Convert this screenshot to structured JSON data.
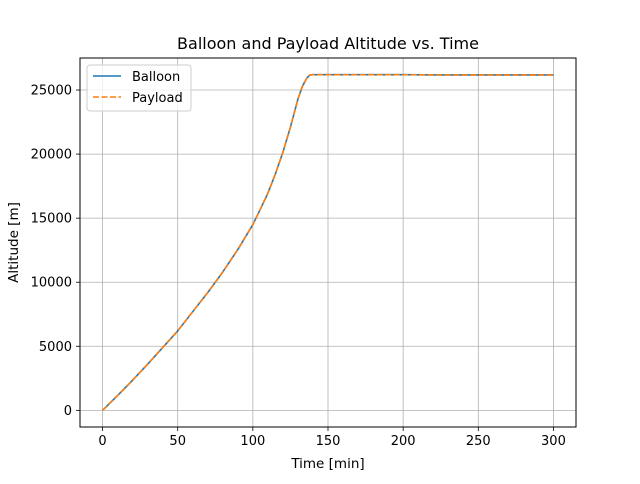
{
  "chart_data": {
    "type": "line",
    "title": "Balloon and Payload Altitude vs. Time",
    "xlabel": "Time [min]",
    "ylabel": "Altitude [m]",
    "xlim": [
      -15,
      315
    ],
    "ylim": [
      -1300,
      27500
    ],
    "xticks": [
      0,
      50,
      100,
      150,
      200,
      250,
      300
    ],
    "yticks": [
      0,
      5000,
      10000,
      15000,
      20000,
      25000
    ],
    "grid": true,
    "legend_position": "top-left",
    "series": [
      {
        "name": "Balloon",
        "color": "#1f77b4",
        "style": "solid",
        "x": [
          0,
          10,
          20,
          30,
          40,
          50,
          60,
          70,
          80,
          90,
          100,
          105,
          110,
          115,
          120,
          125,
          130,
          133,
          136,
          138,
          140,
          150,
          175,
          200,
          225,
          250,
          275,
          300
        ],
        "y": [
          0,
          1150,
          2350,
          3600,
          4900,
          6200,
          7700,
          9200,
          10800,
          12550,
          14500,
          15700,
          16950,
          18450,
          20150,
          22100,
          24300,
          25300,
          25950,
          26180,
          26200,
          26200,
          26200,
          26200,
          26180,
          26180,
          26180,
          26180
        ]
      },
      {
        "name": "Payload",
        "color": "#ff7f0e",
        "style": "dashed",
        "x": [
          0,
          10,
          20,
          30,
          40,
          50,
          60,
          70,
          80,
          90,
          100,
          105,
          110,
          115,
          120,
          125,
          130,
          133,
          136,
          138,
          140,
          150,
          175,
          200,
          225,
          250,
          275,
          300
        ],
        "y": [
          0,
          1150,
          2350,
          3600,
          4900,
          6200,
          7700,
          9200,
          10800,
          12550,
          14500,
          15700,
          16950,
          18450,
          20150,
          22100,
          24300,
          25300,
          25950,
          26180,
          26200,
          26200,
          26200,
          26200,
          26180,
          26180,
          26180,
          26180
        ]
      }
    ]
  }
}
